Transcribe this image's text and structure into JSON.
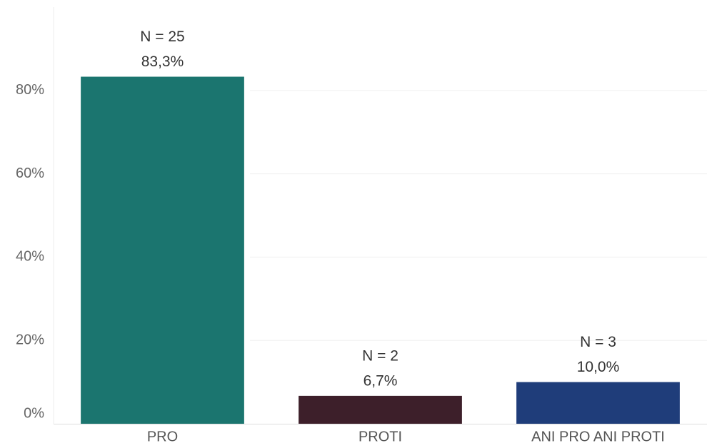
{
  "chart_data": {
    "type": "bar",
    "categories": [
      "PRO",
      "PROTI",
      "ANI PRO ANI PROTI"
    ],
    "values": [
      83.3,
      6.7,
      10.0
    ],
    "value_labels": [
      "83,3%",
      "6,7%",
      "10,0%"
    ],
    "count_labels": [
      "N = 25",
      "N = 2",
      "N = 3"
    ],
    "colors": [
      "#1b756f",
      "#3d1f2a",
      "#1f3d7a"
    ],
    "ylim": [
      0,
      100
    ],
    "yticks": [
      {
        "value": 0,
        "label": "0%"
      },
      {
        "value": 20,
        "label": "20%"
      },
      {
        "value": 40,
        "label": "40%"
      },
      {
        "value": 60,
        "label": "60%"
      },
      {
        "value": 80,
        "label": "80%"
      }
    ],
    "grid": true
  }
}
